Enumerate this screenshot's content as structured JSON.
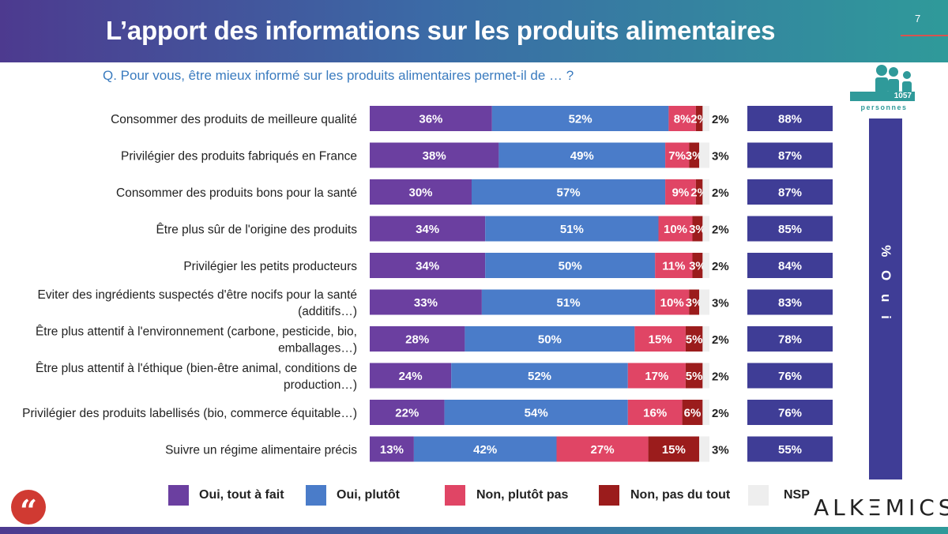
{
  "header": {
    "title": "L’apport des informations sur les produits alimentaires",
    "page_number": "7"
  },
  "question": "Q. Pour vous, être mieux informé sur les produits alimentaires permet-il de … ?",
  "sample": {
    "count": "1057",
    "label": "personnes"
  },
  "oui_axis_label": "% O u i",
  "colors": {
    "tout_a_fait": "#6b3fa0",
    "plutot": "#4a7cc9",
    "plutot_pas": "#e04565",
    "pas_du_tout": "#9b1c1c",
    "nsp": "#eeeeee",
    "total": "#3f3d96"
  },
  "chart_data": {
    "type": "bar",
    "orientation": "horizontal",
    "stacked": true,
    "categories": [
      [
        "Consommer des produits de meilleure qualité"
      ],
      [
        "Privilégier des produits fabriqués en France"
      ],
      [
        "Consommer des produits bons pour la santé"
      ],
      [
        "Être plus sûr de l'origine des produits"
      ],
      [
        "Privilégier les petits producteurs"
      ],
      [
        "Eviter des ingrédients suspectés d'être nocifs pour la santé",
        "(additifs…)"
      ],
      [
        "Être plus attentif à l'environnement (carbone, pesticide, bio,",
        "emballages…)"
      ],
      [
        "Être plus attentif à l'éthique (bien-être animal, conditions de",
        "production…)"
      ],
      [
        "Privilégier des produits labellisés (bio, commerce équitable…)"
      ],
      [
        "Suivre un régime alimentaire précis"
      ]
    ],
    "series": [
      {
        "name": "Oui, tout à fait",
        "values": [
          36,
          38,
          30,
          34,
          34,
          33,
          28,
          24,
          22,
          13
        ]
      },
      {
        "name": "Oui, plutôt",
        "values": [
          52,
          49,
          57,
          51,
          50,
          51,
          50,
          52,
          54,
          42
        ]
      },
      {
        "name": "Non, plutôt pas",
        "values": [
          8,
          7,
          9,
          10,
          11,
          10,
          15,
          17,
          16,
          27
        ]
      },
      {
        "name": "Non, pas du tout",
        "values": [
          2,
          3,
          2,
          3,
          3,
          3,
          5,
          5,
          6,
          15
        ]
      },
      {
        "name": "NSP",
        "values": [
          2,
          3,
          2,
          2,
          2,
          3,
          2,
          2,
          2,
          3
        ]
      }
    ],
    "oui_totals": [
      88,
      87,
      87,
      85,
      84,
      83,
      78,
      76,
      76,
      55
    ],
    "unit": "%"
  },
  "brand": {
    "logo_text": "ALKΞMICS",
    "quote_glyph": "“"
  }
}
